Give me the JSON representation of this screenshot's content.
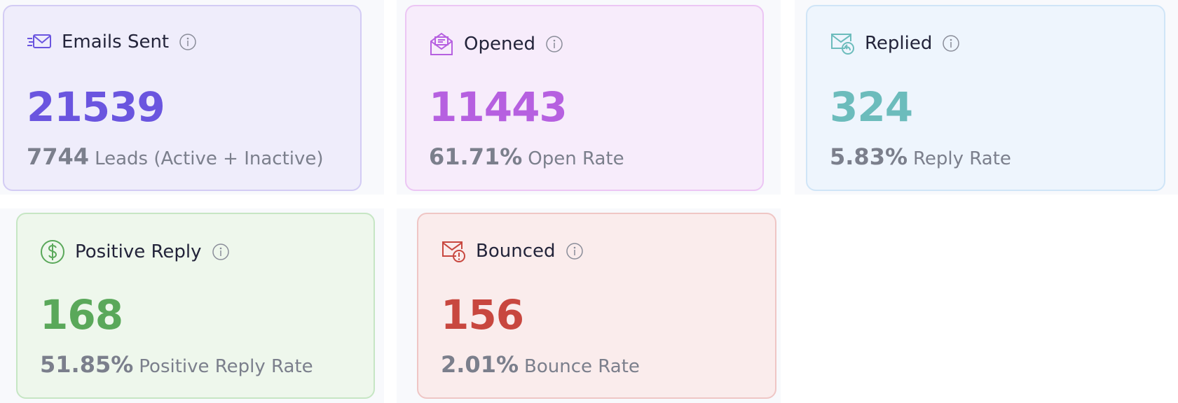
{
  "cards": [
    {
      "title": "Emails Sent",
      "value": "21539",
      "sub_value": "7744",
      "sub_label": "Leads (Active + Inactive)"
    },
    {
      "title": "Opened",
      "value": "11443",
      "sub_value": "61.71%",
      "sub_label": "Open Rate"
    },
    {
      "title": "Replied",
      "value": "324",
      "sub_value": "5.83%",
      "sub_label": "Reply Rate"
    },
    {
      "title": "Positive Reply",
      "value": "168",
      "sub_value": "51.85%",
      "sub_label": "Positive Reply Rate"
    },
    {
      "title": "Bounced",
      "value": "156",
      "sub_value": "2.01%",
      "sub_label": "Bounce Rate"
    }
  ]
}
